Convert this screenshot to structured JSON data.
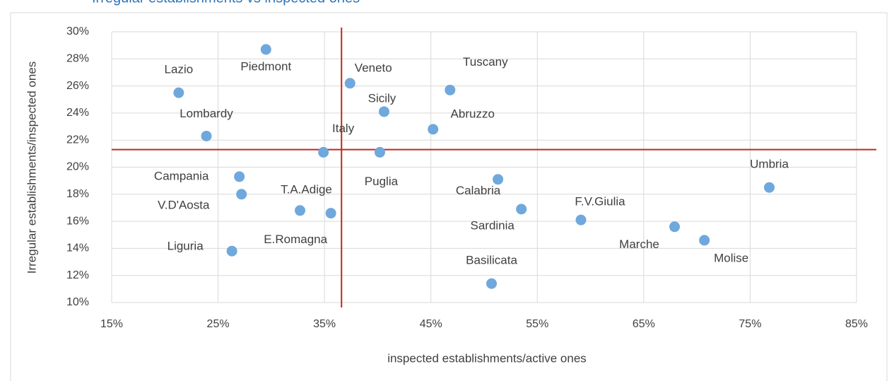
{
  "chart_data": {
    "type": "scatter",
    "title": "Irregular establishments vs inspected ones",
    "x_label": "inspected establishments/active ones",
    "y_label": "Irregular establishments/inspected ones",
    "color": "#6fa8dc",
    "title_color": "#2e75b6",
    "grid": true,
    "xlim": [
      15,
      85
    ],
    "xticks": [
      {
        "value": 15,
        "label": "15%"
      },
      {
        "value": 25,
        "label": "25%"
      },
      {
        "value": 35,
        "label": "35%"
      },
      {
        "value": 45,
        "label": "45%"
      },
      {
        "value": 55,
        "label": "55%"
      },
      {
        "value": 65,
        "label": "65%"
      },
      {
        "value": 75,
        "label": "75%"
      },
      {
        "value": 85,
        "label": "85%"
      }
    ],
    "ylim": [
      10,
      30
    ],
    "yticks": [
      {
        "value": 10,
        "label": "10%"
      },
      {
        "value": 12,
        "label": "12%"
      },
      {
        "value": 14,
        "label": "14%"
      },
      {
        "value": 16,
        "label": "16%"
      },
      {
        "value": 18,
        "label": "18%"
      },
      {
        "value": 20,
        "label": "20%"
      },
      {
        "value": 22,
        "label": "22%"
      },
      {
        "value": 24,
        "label": "24%"
      },
      {
        "value": 26,
        "label": "26%"
      },
      {
        "value": 28,
        "label": "28%"
      },
      {
        "value": 30,
        "label": "30%"
      }
    ],
    "reference_lines": {
      "x": 36.6,
      "y": 21.3,
      "color": "#c0281c"
    },
    "labels": [
      "Lazio",
      "Piedmont",
      "Lombardy",
      "Campania",
      "V.D'Aosta",
      "Liguria",
      "T.A.Adige",
      "E.Romagna",
      "Italy",
      "Puglia",
      "Veneto",
      "Sicily",
      "Tuscany",
      "Abruzzo",
      "Calabria",
      "Sardinia",
      "Basilicata",
      "F.V.Giulia",
      "Marche",
      "Molise",
      "Umbria"
    ],
    "x": [
      21.3,
      29.5,
      23.9,
      27.0,
      27.2,
      26.3,
      32.7,
      35.6,
      34.9,
      40.2,
      37.4,
      40.6,
      46.8,
      45.2,
      51.3,
      53.5,
      50.7,
      59.1,
      67.9,
      70.7,
      76.8
    ],
    "y": [
      25.5,
      28.7,
      22.3,
      19.3,
      18.0,
      13.8,
      16.8,
      16.6,
      21.1,
      21.1,
      26.2,
      24.1,
      25.7,
      22.8,
      19.1,
      16.9,
      11.4,
      16.1,
      15.6,
      14.6,
      18.5
    ]
  }
}
